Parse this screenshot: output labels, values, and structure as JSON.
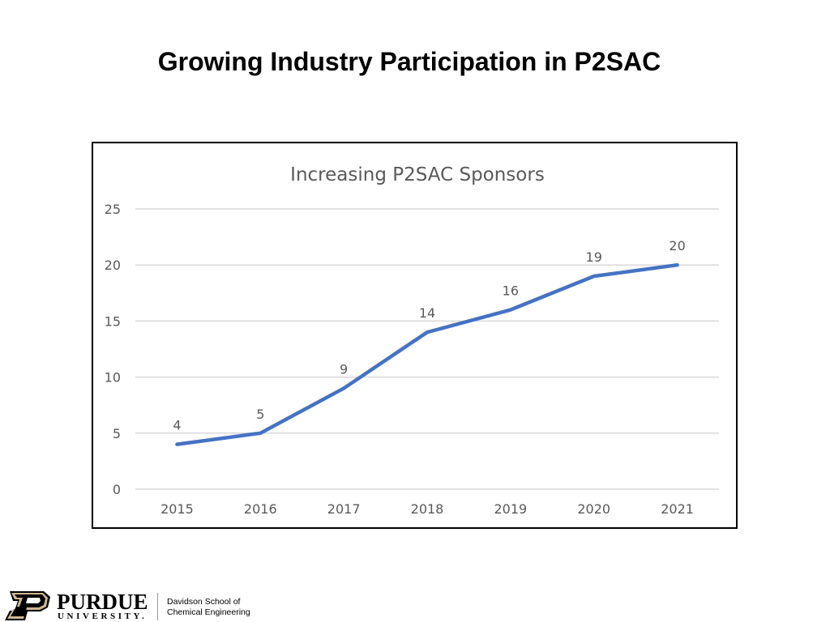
{
  "slide": {
    "title": "Growing Industry Participation in P2SAC"
  },
  "chart_data": {
    "type": "line",
    "title": "Increasing P2SAC Sponsors",
    "categories": [
      "2015",
      "2016",
      "2017",
      "2018",
      "2019",
      "2020",
      "2021"
    ],
    "values": [
      4,
      5,
      9,
      14,
      16,
      19,
      20
    ],
    "data_labels": [
      "4",
      "5",
      "9",
      "14",
      "16",
      "19",
      "20"
    ],
    "ylim": [
      0,
      25
    ],
    "yticks": [
      "0",
      "5",
      "10",
      "15",
      "20",
      "25"
    ],
    "grid": true,
    "legend": "none",
    "colors": {
      "line": "#4472C4",
      "grid": "#D9D9D9",
      "text": "#595959"
    }
  },
  "footer": {
    "logo_word": "PURDUE",
    "logo_sub": "UNIVERSITY.",
    "dept_line1": "Davidson School of",
    "dept_line2": "Chemical Engineering"
  }
}
